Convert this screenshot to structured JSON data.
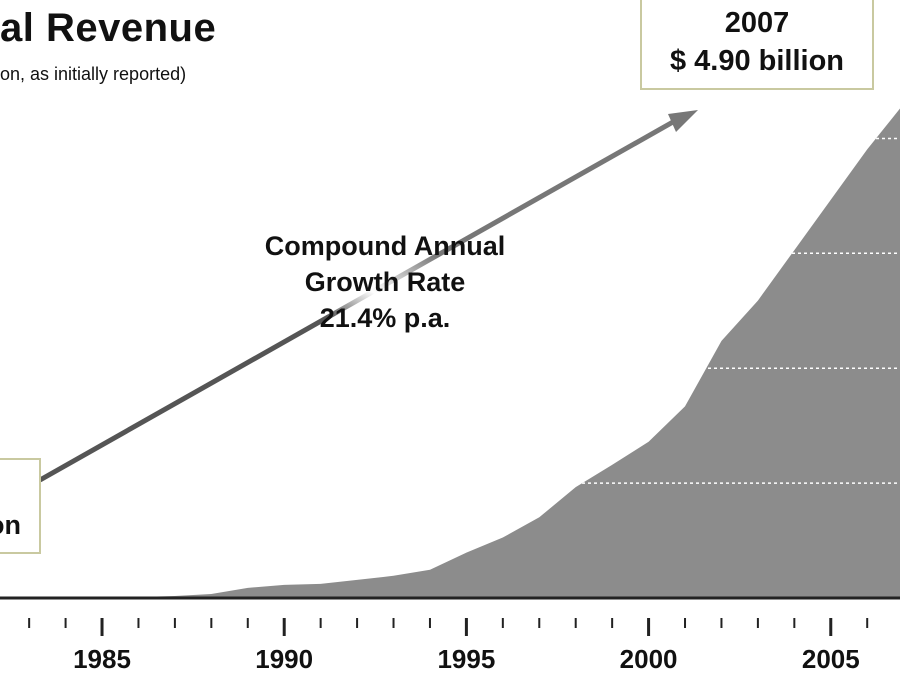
{
  "header": {
    "title": "al Revenue",
    "subtitle": "on, as initially reported)"
  },
  "callouts": {
    "end_year": "2007",
    "end_value": "$ 4.90 billion",
    "start_value_fragment": "on"
  },
  "annotation": {
    "line1": "Compound Annual",
    "line2": "Growth Rate",
    "line3": "21.4% p.a."
  },
  "colors": {
    "area_fill": "#8c8c8c",
    "axis": "#222222",
    "arrow": "#666666",
    "callout_border": "#c9c9a0",
    "gridline": "#ffffff"
  },
  "chart_data": {
    "type": "area",
    "x": [
      1984,
      1985,
      1986,
      1987,
      1988,
      1989,
      1990,
      1991,
      1992,
      1993,
      1994,
      1995,
      1996,
      1997,
      1998,
      1999,
      2000,
      2001,
      2002,
      2003,
      2004,
      2005,
      2006,
      2007
    ],
    "series": [
      {
        "values": [
          0.0,
          0.0,
          0.01,
          0.02,
          0.04,
          0.1,
          0.13,
          0.14,
          0.18,
          0.22,
          0.28,
          0.45,
          0.6,
          0.8,
          1.1,
          1.32,
          1.55,
          1.9,
          2.55,
          2.95,
          3.45,
          3.95,
          4.45,
          4.9
        ]
      }
    ],
    "x_ticks": [
      1985,
      1990,
      1995,
      2000,
      2005
    ],
    "xlim": [
      1982.2,
      2006.9
    ],
    "ylim": [
      0,
      4.9
    ],
    "grid": "horizontal dashed white lines inside area",
    "legend": "none"
  }
}
